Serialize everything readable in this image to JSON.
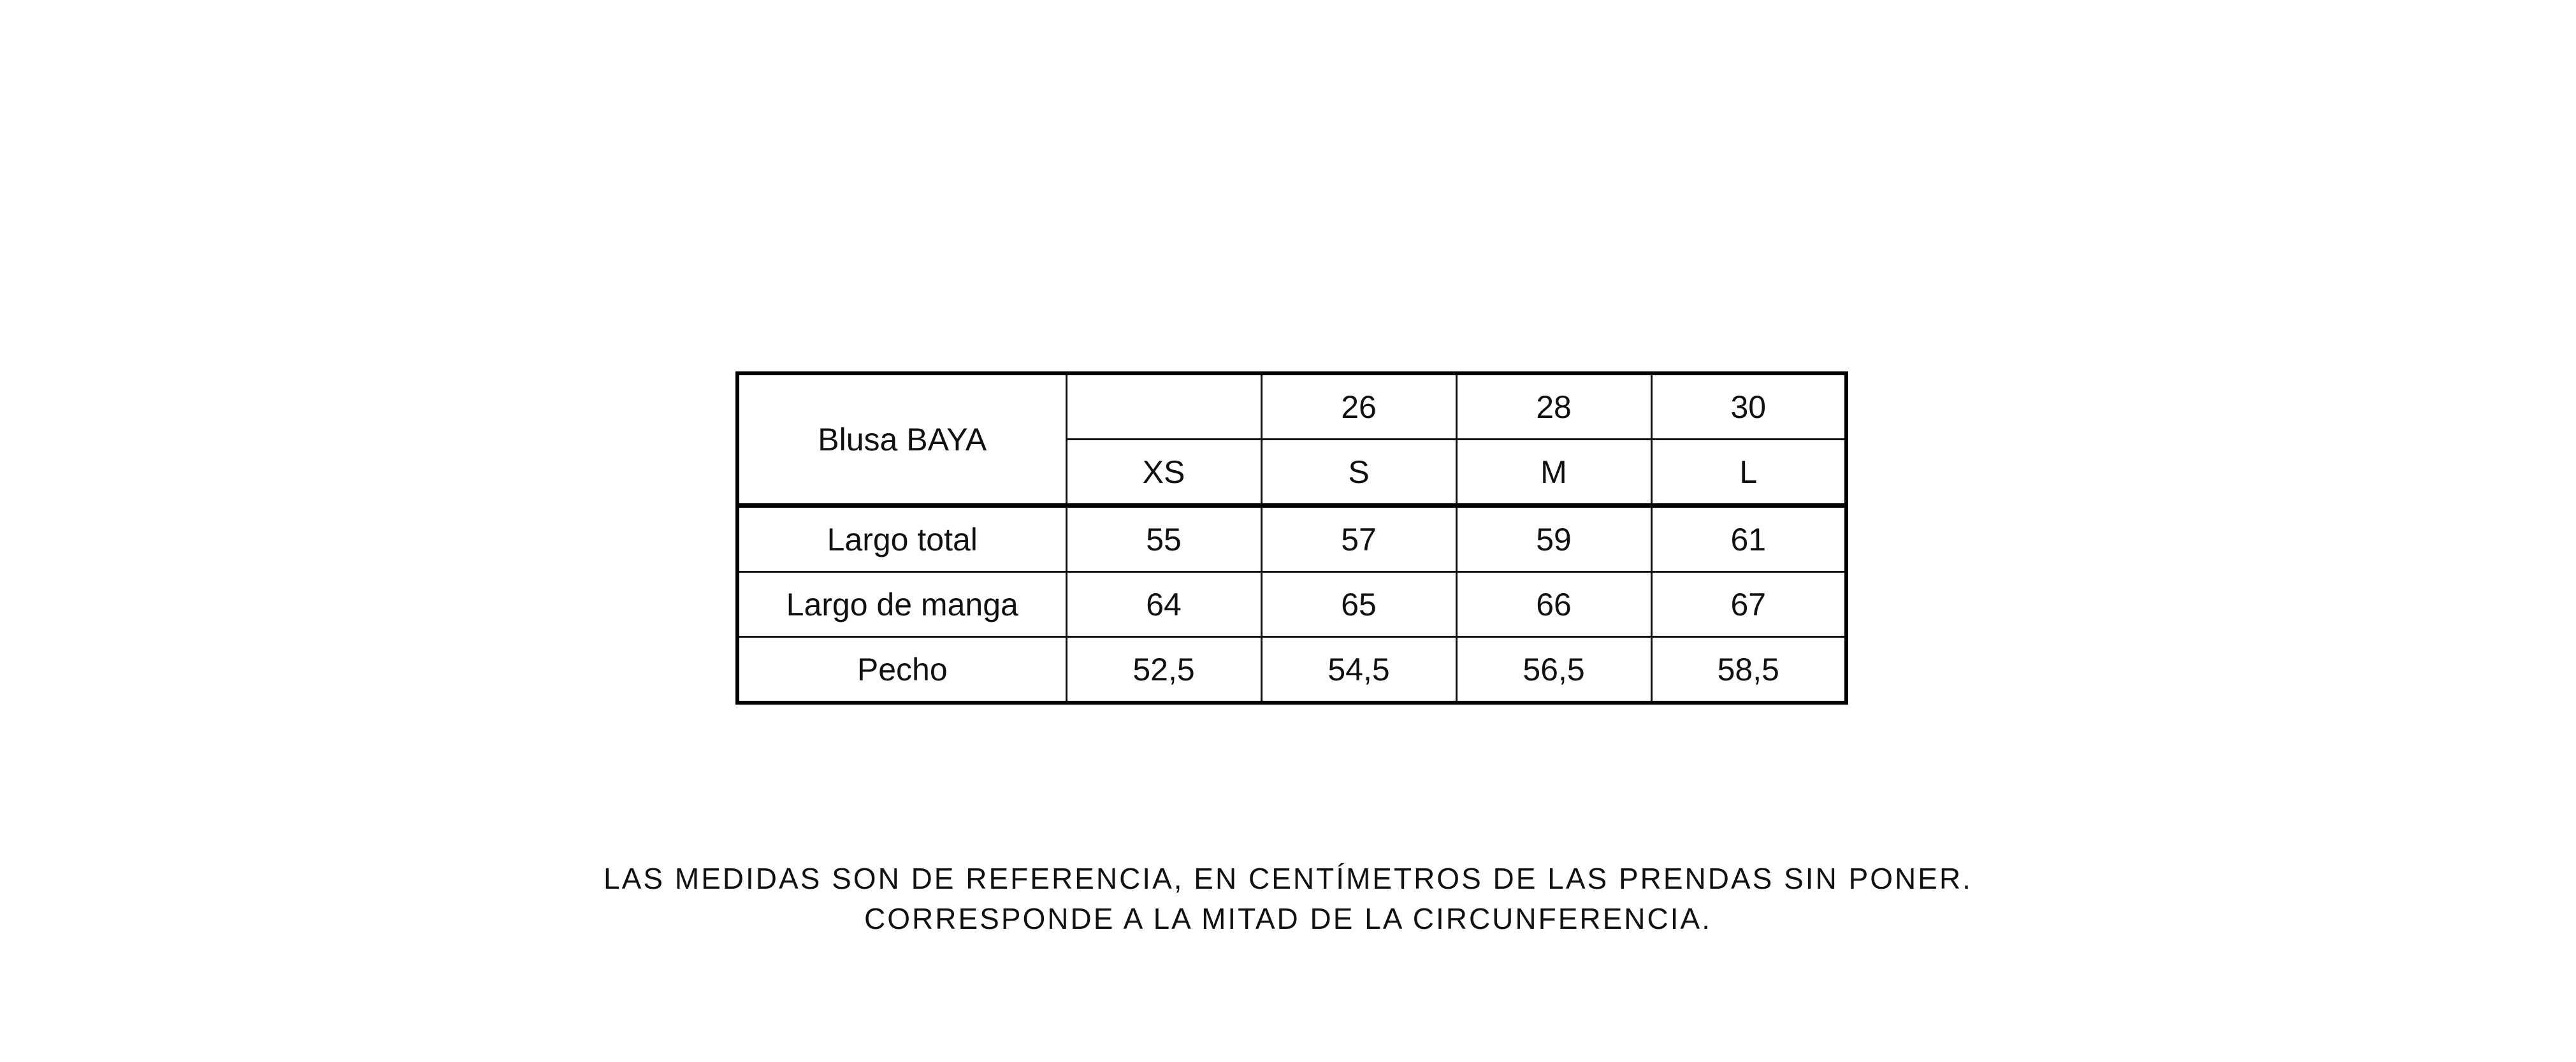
{
  "table": {
    "product": "Blusa BAYA",
    "numeric_sizes": [
      "",
      "26",
      "28",
      "30"
    ],
    "letter_sizes": [
      "XS",
      "S",
      "M",
      "L"
    ],
    "rows": [
      {
        "label": "Largo total",
        "values": [
          "55",
          "57",
          "59",
          "61"
        ]
      },
      {
        "label": "Largo de manga",
        "values": [
          "64",
          "65",
          "66",
          "67"
        ]
      },
      {
        "label": "Pecho",
        "values": [
          "52,5",
          "54,5",
          "56,5",
          "58,5"
        ]
      }
    ]
  },
  "notes": [
    "LAS MEDIDAS SON DE REFERENCIA, EN CENTÍMETROS DE LAS PRENDAS SIN PONER.",
    "CORRESPONDE A LA MITAD DE LA CIRCUNFERENCIA."
  ]
}
